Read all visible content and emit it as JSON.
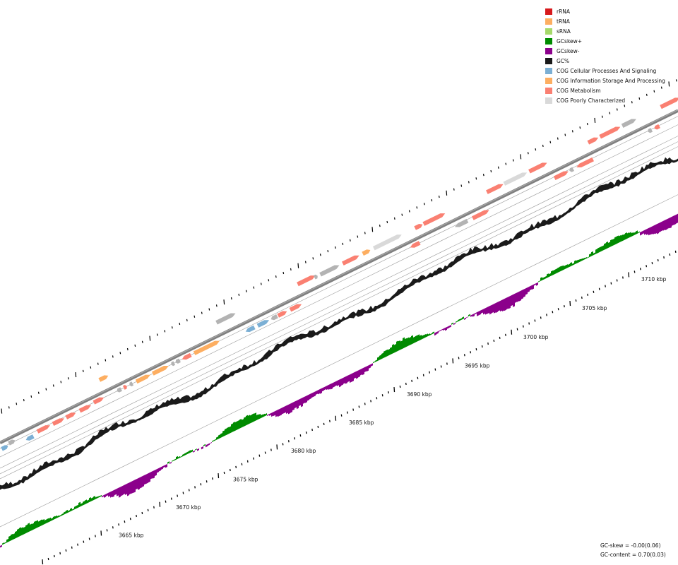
{
  "legend": [
    {
      "label": "rRNA",
      "color": "#d7191c",
      "icon": "rrna-swatch"
    },
    {
      "label": "tRNA",
      "color": "#fdae61",
      "icon": "trna-swatch"
    },
    {
      "label": "sRNA",
      "color": "#a6d96a",
      "icon": "srna-swatch"
    },
    {
      "label": "GCskew+",
      "color": "#008b00",
      "icon": "gcskew-plus-swatch"
    },
    {
      "label": "GCskew-",
      "color": "#8b008b",
      "icon": "gcskew-minus-swatch"
    },
    {
      "label": "GC%",
      "color": "#1a1a1a",
      "icon": "gc-content-swatch"
    },
    {
      "label": "COG Cellular Processes And Signaling",
      "color": "#7bafd4",
      "icon": "cog-cellular-swatch"
    },
    {
      "label": "COG Information Storage And Processing",
      "color": "#fdae61",
      "icon": "cog-information-swatch"
    },
    {
      "label": "COG Metabolism",
      "color": "#fa8072",
      "icon": "cog-metabolism-swatch"
    },
    {
      "label": "COG Poorly Characterized",
      "color": "#d9d9d9",
      "icon": "cog-poorly-swatch"
    }
  ],
  "kbp_labels": [
    "3665 kbp",
    "3670 kbp",
    "3675 kbp",
    "3680 kbp",
    "3685 kbp",
    "3690 kbp",
    "3695 kbp",
    "3700 kbp",
    "3705 kbp",
    "3710 kbp"
  ],
  "stats": {
    "gc_skew": "GC-skew = -0.00(0.06)",
    "gc_content": "GC-content = 0.70(0.03)"
  },
  "colors": {
    "backbone": "#808080",
    "track_line": "#999999",
    "gray_feature": "#b3b3b3",
    "tick": "#000000"
  }
}
